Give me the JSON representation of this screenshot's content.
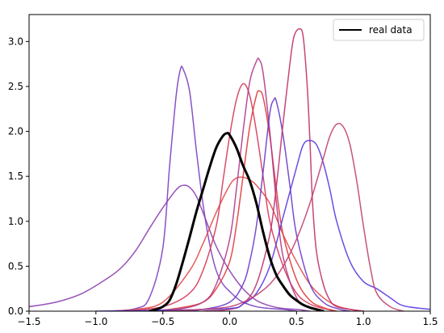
{
  "chart_data": {
    "type": "line",
    "title": "",
    "xlabel": "",
    "ylabel": "",
    "xlim": [
      -1.5,
      1.5
    ],
    "ylim": [
      0,
      3.3
    ],
    "x_ticks": [
      -1.5,
      -1.0,
      -0.5,
      0.0,
      0.5,
      1.0,
      1.5
    ],
    "x_tick_labels": [
      "−1.5",
      "−1.0",
      "−0.5",
      "0.0",
      "0.5",
      "1.0",
      "1.5"
    ],
    "y_ticks": [
      0.0,
      0.5,
      1.0,
      1.5,
      2.0,
      2.5,
      3.0
    ],
    "y_tick_labels": [
      "0.0",
      "0.5",
      "1.0",
      "1.5",
      "2.0",
      "2.5",
      "3.0"
    ],
    "grid": false,
    "legend": {
      "position": "top-right",
      "entries": [
        "real data"
      ]
    },
    "series": [
      {
        "name": "real data",
        "color": "#000000",
        "width": 3,
        "x": [
          -0.6,
          -0.55,
          -0.5,
          -0.45,
          -0.4,
          -0.35,
          -0.3,
          -0.25,
          -0.2,
          -0.15,
          -0.1,
          -0.05,
          -0.02,
          0.0,
          0.05,
          0.1,
          0.15,
          0.2,
          0.25,
          0.3,
          0.35,
          0.4,
          0.45,
          0.5,
          0.55,
          0.6,
          0.65,
          0.7
        ],
        "y": [
          0.0,
          0.02,
          0.05,
          0.12,
          0.3,
          0.55,
          0.82,
          1.1,
          1.35,
          1.6,
          1.82,
          1.95,
          1.98,
          1.96,
          1.82,
          1.62,
          1.45,
          1.2,
          0.88,
          0.6,
          0.4,
          0.28,
          0.18,
          0.12,
          0.07,
          0.04,
          0.02,
          0.0
        ]
      },
      {
        "color": "#7b3fc0",
        "width": 1.5,
        "x": [
          -0.9,
          -0.7,
          -0.6,
          -0.5,
          -0.45,
          -0.4,
          -0.37,
          -0.35,
          -0.3,
          -0.25,
          -0.2,
          -0.15,
          -0.1,
          -0.05,
          0.0,
          0.05,
          0.1,
          0.2,
          0.3,
          0.4,
          0.5
        ],
        "y": [
          0.0,
          0.03,
          0.15,
          0.7,
          1.6,
          2.4,
          2.68,
          2.7,
          2.45,
          1.8,
          1.2,
          0.75,
          0.45,
          0.3,
          0.22,
          0.15,
          0.1,
          0.05,
          0.03,
          0.02,
          0.0
        ]
      },
      {
        "color": "#8c3fb0",
        "width": 1.5,
        "x": [
          -1.5,
          -1.3,
          -1.1,
          -0.9,
          -0.8,
          -0.7,
          -0.6,
          -0.5,
          -0.4,
          -0.35,
          -0.3,
          -0.25,
          -0.2,
          -0.1,
          0.0,
          0.1,
          0.2,
          0.3,
          0.4,
          0.5,
          0.6
        ],
        "y": [
          0.05,
          0.1,
          0.2,
          0.38,
          0.5,
          0.68,
          0.92,
          1.15,
          1.35,
          1.4,
          1.38,
          1.28,
          1.1,
          0.72,
          0.45,
          0.25,
          0.12,
          0.06,
          0.03,
          0.02,
          0.0
        ]
      },
      {
        "color": "#e24a4a",
        "width": 1.5,
        "x": [
          -0.9,
          -0.7,
          -0.5,
          -0.3,
          -0.2,
          -0.1,
          0.0,
          0.05,
          0.1,
          0.15,
          0.2,
          0.3,
          0.4,
          0.5,
          0.6,
          0.7,
          0.8,
          0.9,
          1.0
        ],
        "y": [
          0.0,
          0.02,
          0.1,
          0.45,
          0.75,
          1.1,
          1.4,
          1.48,
          1.49,
          1.46,
          1.4,
          1.2,
          0.85,
          0.55,
          0.3,
          0.15,
          0.06,
          0.02,
          0.0
        ]
      },
      {
        "color": "#d43a5a",
        "width": 1.5,
        "x": [
          -0.8,
          -0.5,
          -0.3,
          -0.2,
          -0.1,
          -0.05,
          0.0,
          0.05,
          0.1,
          0.15,
          0.2,
          0.25,
          0.3,
          0.4,
          0.5,
          0.6,
          0.7,
          0.8
        ],
        "y": [
          0.0,
          0.05,
          0.2,
          0.45,
          0.95,
          1.45,
          1.95,
          2.35,
          2.53,
          2.4,
          2.0,
          1.5,
          1.0,
          0.5,
          0.2,
          0.08,
          0.03,
          0.0
        ]
      },
      {
        "color": "#e03a3a",
        "width": 1.5,
        "x": [
          -0.6,
          -0.4,
          -0.2,
          -0.1,
          0.0,
          0.05,
          0.1,
          0.15,
          0.2,
          0.22,
          0.25,
          0.3,
          0.35,
          0.4,
          0.5,
          0.6,
          0.7,
          0.8
        ],
        "y": [
          0.0,
          0.03,
          0.1,
          0.25,
          0.55,
          0.95,
          1.5,
          2.05,
          2.4,
          2.45,
          2.38,
          1.95,
          1.35,
          0.85,
          0.35,
          0.12,
          0.04,
          0.0
        ]
      },
      {
        "color": "#b03a8a",
        "width": 1.5,
        "x": [
          -0.7,
          -0.4,
          -0.2,
          -0.1,
          0.0,
          0.05,
          0.1,
          0.15,
          0.2,
          0.22,
          0.25,
          0.3,
          0.35,
          0.4,
          0.5,
          0.6,
          0.7
        ],
        "y": [
          0.0,
          0.02,
          0.1,
          0.3,
          0.8,
          1.35,
          2.0,
          2.55,
          2.78,
          2.8,
          2.65,
          2.0,
          1.2,
          0.6,
          0.15,
          0.04,
          0.0
        ]
      },
      {
        "color": "#6a3acb",
        "width": 1.5,
        "x": [
          -0.4,
          -0.2,
          0.0,
          0.1,
          0.15,
          0.2,
          0.25,
          0.3,
          0.33,
          0.35,
          0.4,
          0.45,
          0.5,
          0.6,
          0.7,
          0.8,
          0.9
        ],
        "y": [
          0.0,
          0.02,
          0.1,
          0.3,
          0.55,
          0.95,
          1.55,
          2.2,
          2.35,
          2.33,
          1.95,
          1.4,
          0.85,
          0.3,
          0.1,
          0.03,
          0.0
        ]
      },
      {
        "color": "#c0306a",
        "width": 1.5,
        "x": [
          -0.2,
          0.0,
          0.1,
          0.2,
          0.3,
          0.35,
          0.4,
          0.45,
          0.48,
          0.52,
          0.55,
          0.58,
          0.6,
          0.62,
          0.65,
          0.7,
          0.75,
          0.8,
          0.9,
          1.0
        ],
        "y": [
          0.0,
          0.02,
          0.08,
          0.3,
          0.85,
          1.4,
          2.1,
          2.75,
          3.05,
          3.14,
          3.05,
          2.5,
          1.9,
          1.2,
          0.65,
          0.3,
          0.12,
          0.05,
          0.02,
          0.0
        ]
      },
      {
        "color": "#5a3ae0",
        "width": 1.5,
        "x": [
          -1.0,
          -0.5,
          0.0,
          0.1,
          0.2,
          0.3,
          0.4,
          0.5,
          0.55,
          0.6,
          0.65,
          0.7,
          0.75,
          0.8,
          0.9,
          1.0,
          1.1,
          1.2,
          1.3,
          1.5
        ],
        "y": [
          0.0,
          0.01,
          0.03,
          0.08,
          0.2,
          0.5,
          1.05,
          1.6,
          1.85,
          1.9,
          1.85,
          1.65,
          1.35,
          1.0,
          0.55,
          0.33,
          0.25,
          0.15,
          0.06,
          0.02
        ]
      },
      {
        "color": "#c04070",
        "width": 1.5,
        "x": [
          -0.5,
          -0.2,
          0.0,
          0.1,
          0.2,
          0.3,
          0.4,
          0.5,
          0.6,
          0.7,
          0.75,
          0.8,
          0.85,
          0.9,
          0.95,
          1.0,
          1.05,
          1.1,
          1.2,
          1.3
        ],
        "y": [
          0.0,
          0.02,
          0.05,
          0.1,
          0.18,
          0.3,
          0.5,
          0.8,
          1.2,
          1.7,
          1.95,
          2.08,
          2.05,
          1.85,
          1.45,
          0.95,
          0.5,
          0.2,
          0.05,
          0.0
        ]
      }
    ]
  }
}
